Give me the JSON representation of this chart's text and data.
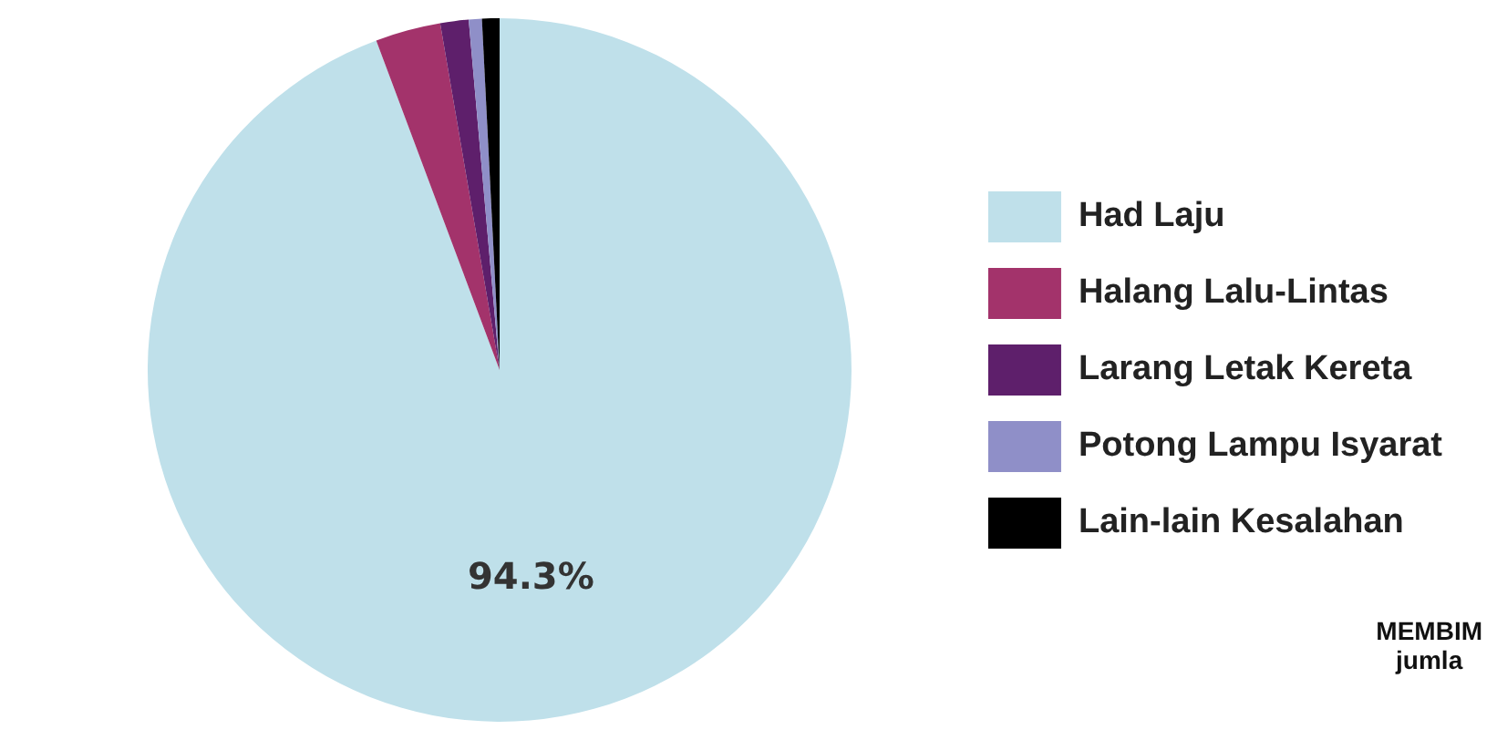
{
  "chart_data": {
    "type": "pie",
    "categories": [
      "Had Laju",
      "Halang Lalu-Lintas",
      "Larang Letak Kereta",
      "Potong Lampu Isyarat",
      "Lain-lain Kesalahan"
    ],
    "values": [
      94.3,
      3.0,
      1.3,
      0.6,
      0.8
    ],
    "colors": [
      "#bfe0ea",
      "#a3336b",
      "#5e1f6b",
      "#8f8fc8",
      "#000000"
    ],
    "value_labels": [
      "94.3%",
      null,
      null,
      null,
      null
    ],
    "legend": "right",
    "annotations": [
      "MEMBIM",
      "jumla"
    ]
  }
}
